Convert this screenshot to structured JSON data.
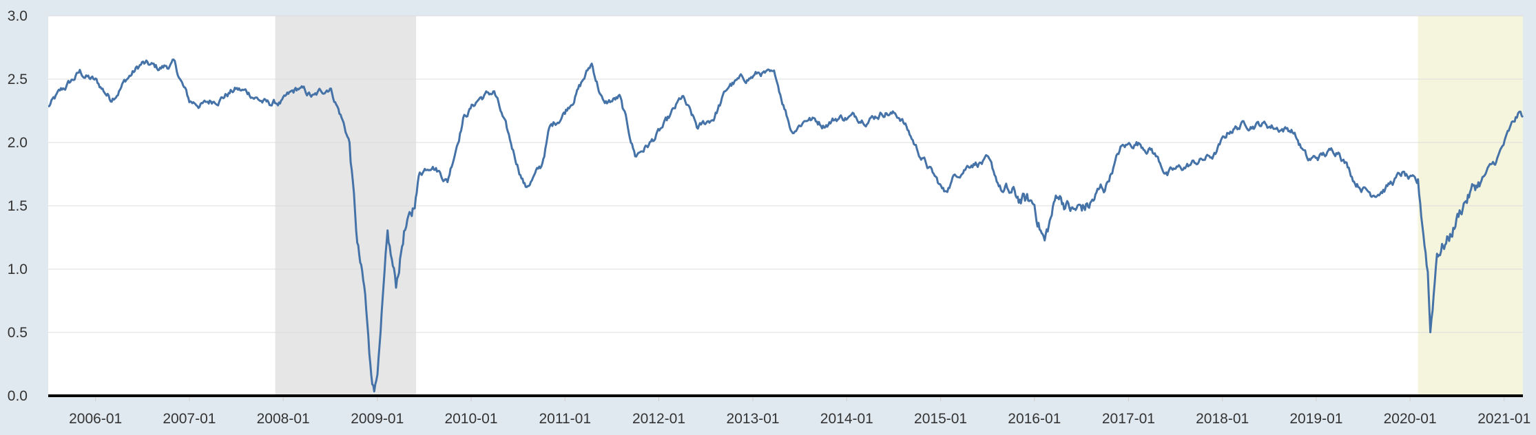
{
  "chart_data": {
    "type": "line",
    "title": "",
    "xlabel": "",
    "ylabel": "",
    "xlim": [
      "2005-07-01",
      "2021-03-15"
    ],
    "ylim": [
      0,
      3
    ],
    "y_ticks": [
      "0.0",
      "0.5",
      "1.0",
      "1.5",
      "2.0",
      "2.5",
      "3.0"
    ],
    "x_ticks": [
      "2006-01",
      "2007-01",
      "2008-01",
      "2009-01",
      "2010-01",
      "2011-01",
      "2012-01",
      "2013-01",
      "2014-01",
      "2015-01",
      "2016-01",
      "2017-01",
      "2018-01",
      "2019-01",
      "2020-01",
      "2021-01"
    ],
    "grid": true,
    "legend": "none",
    "line_color": "#4572a7",
    "shaded_regions": [
      {
        "start": "2007-12-01",
        "end": "2009-06-01",
        "color": "#e6e6e6"
      },
      {
        "start": "2020-02-01",
        "end": "2021-03-15",
        "color": "#f5f4dc"
      }
    ],
    "series": [
      {
        "values": [
          [
            "2005-07-01",
            2.28
          ],
          [
            "2005-09-01",
            2.42
          ],
          [
            "2005-11-01",
            2.55
          ],
          [
            "2006-01-01",
            2.48
          ],
          [
            "2006-03-01",
            2.35
          ],
          [
            "2006-05-01",
            2.5
          ],
          [
            "2006-07-01",
            2.62
          ],
          [
            "2006-09-01",
            2.58
          ],
          [
            "2006-11-01",
            2.62
          ],
          [
            "2007-01-01",
            2.32
          ],
          [
            "2007-03-01",
            2.3
          ],
          [
            "2007-05-01",
            2.36
          ],
          [
            "2007-07-01",
            2.42
          ],
          [
            "2007-09-01",
            2.38
          ],
          [
            "2007-11-01",
            2.3
          ],
          [
            "2008-01-01",
            2.32
          ],
          [
            "2008-03-01",
            2.42
          ],
          [
            "2008-05-01",
            2.35
          ],
          [
            "2008-07-01",
            2.45
          ],
          [
            "2008-08-15",
            2.2
          ],
          [
            "2008-09-15",
            2.0
          ],
          [
            "2008-10-15",
            1.2
          ],
          [
            "2008-11-15",
            0.75
          ],
          [
            "2008-12-01",
            0.3
          ],
          [
            "2008-12-20",
            0.05
          ],
          [
            "2009-01-10",
            0.4
          ],
          [
            "2009-02-10",
            1.2
          ],
          [
            "2009-03-15",
            0.85
          ],
          [
            "2009-04-15",
            1.3
          ],
          [
            "2009-05-15",
            1.4
          ],
          [
            "2009-06-15",
            1.75
          ],
          [
            "2009-08-01",
            1.85
          ],
          [
            "2009-10-01",
            1.7
          ],
          [
            "2009-12-01",
            2.2
          ],
          [
            "2010-02-01",
            2.35
          ],
          [
            "2010-04-01",
            2.4
          ],
          [
            "2010-06-01",
            2.0
          ],
          [
            "2010-08-01",
            1.65
          ],
          [
            "2010-10-01",
            1.8
          ],
          [
            "2010-11-01",
            2.1
          ],
          [
            "2011-01-01",
            2.25
          ],
          [
            "2011-03-01",
            2.45
          ],
          [
            "2011-04-15",
            2.62
          ],
          [
            "2011-06-01",
            2.3
          ],
          [
            "2011-08-01",
            2.35
          ],
          [
            "2011-10-01",
            1.9
          ],
          [
            "2011-12-01",
            2.0
          ],
          [
            "2012-02-01",
            2.15
          ],
          [
            "2012-04-01",
            2.35
          ],
          [
            "2012-06-01",
            2.1
          ],
          [
            "2012-08-01",
            2.2
          ],
          [
            "2012-10-01",
            2.45
          ],
          [
            "2012-12-01",
            2.5
          ],
          [
            "2013-02-01",
            2.55
          ],
          [
            "2013-04-01",
            2.5
          ],
          [
            "2013-06-01",
            2.1
          ],
          [
            "2013-08-01",
            2.2
          ],
          [
            "2013-10-01",
            2.15
          ],
          [
            "2013-12-01",
            2.2
          ],
          [
            "2014-02-01",
            2.2
          ],
          [
            "2014-04-01",
            2.2
          ],
          [
            "2014-06-01",
            2.25
          ],
          [
            "2014-08-01",
            2.2
          ],
          [
            "2014-10-01",
            1.95
          ],
          [
            "2014-12-01",
            1.75
          ],
          [
            "2015-01-15",
            1.6
          ],
          [
            "2015-03-01",
            1.75
          ],
          [
            "2015-05-01",
            1.85
          ],
          [
            "2015-07-01",
            1.85
          ],
          [
            "2015-09-01",
            1.6
          ],
          [
            "2015-11-01",
            1.55
          ],
          [
            "2016-01-01",
            1.5
          ],
          [
            "2016-02-10",
            1.22
          ],
          [
            "2016-04-01",
            1.6
          ],
          [
            "2016-06-01",
            1.45
          ],
          [
            "2016-08-01",
            1.5
          ],
          [
            "2016-10-01",
            1.65
          ],
          [
            "2016-12-01",
            1.95
          ],
          [
            "2017-02-01",
            2.0
          ],
          [
            "2017-04-01",
            1.95
          ],
          [
            "2017-06-01",
            1.75
          ],
          [
            "2017-08-01",
            1.8
          ],
          [
            "2017-10-01",
            1.85
          ],
          [
            "2017-12-01",
            1.9
          ],
          [
            "2018-02-01",
            2.1
          ],
          [
            "2018-04-01",
            2.15
          ],
          [
            "2018-06-01",
            2.15
          ],
          [
            "2018-08-01",
            2.12
          ],
          [
            "2018-10-01",
            2.1
          ],
          [
            "2018-12-01",
            1.85
          ],
          [
            "2019-02-01",
            1.9
          ],
          [
            "2019-04-01",
            1.95
          ],
          [
            "2019-06-01",
            1.7
          ],
          [
            "2019-08-01",
            1.6
          ],
          [
            "2019-10-01",
            1.65
          ],
          [
            "2019-12-01",
            1.75
          ],
          [
            "2020-02-01",
            1.65
          ],
          [
            "2020-03-10",
            1.0
          ],
          [
            "2020-03-20",
            0.52
          ],
          [
            "2020-04-15",
            1.15
          ],
          [
            "2020-06-01",
            1.25
          ],
          [
            "2020-08-01",
            1.55
          ],
          [
            "2020-10-01",
            1.7
          ],
          [
            "2020-12-01",
            1.85
          ],
          [
            "2021-01-15",
            2.05
          ],
          [
            "2021-02-15",
            2.18
          ],
          [
            "2021-03-01",
            2.22
          ],
          [
            "2021-03-15",
            2.2
          ]
        ]
      }
    ]
  }
}
